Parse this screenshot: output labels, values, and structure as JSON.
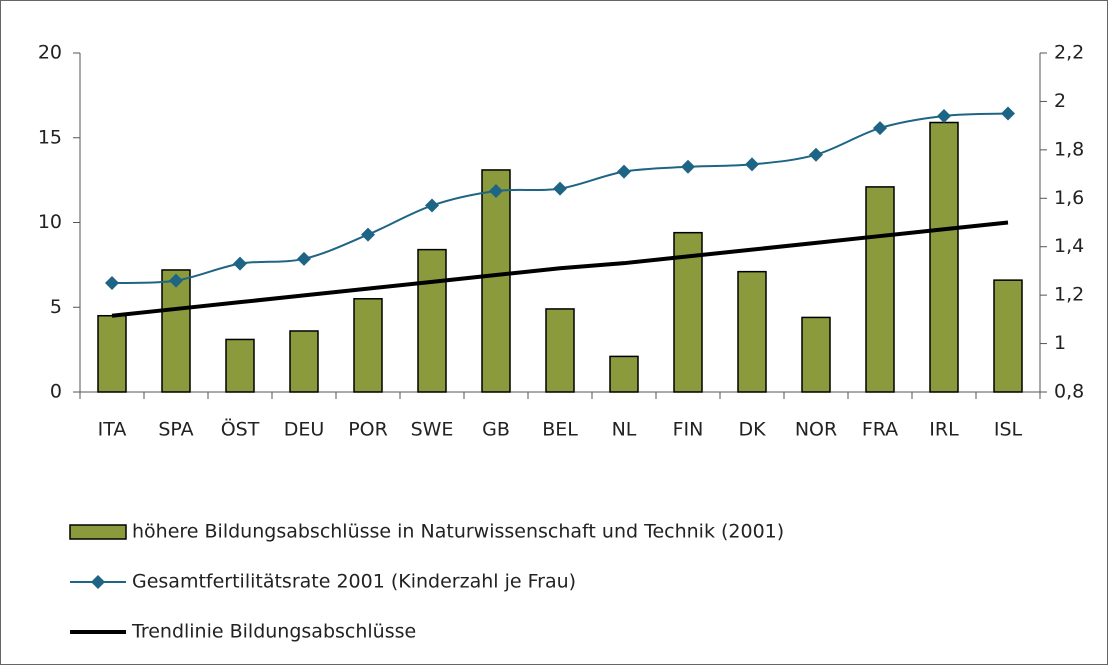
{
  "chart_data": {
    "type": "bar",
    "categories": [
      "ITA",
      "SPA",
      "ÖST",
      "DEU",
      "POR",
      "SWE",
      "GB",
      "BEL",
      "NL",
      "FIN",
      "DK",
      "NOR",
      "FRA",
      "IRL",
      "ISL"
    ],
    "series": [
      {
        "name": "höhere Bildungsabschlüsse in Naturwissenschaft und Technik (2001)",
        "type": "bar",
        "color": "#8a9a3c",
        "values": [
          4.5,
          7.2,
          3.1,
          3.6,
          5.5,
          8.4,
          13.1,
          4.9,
          2.1,
          9.4,
          7.1,
          4.4,
          12.1,
          15.9,
          6.6
        ]
      },
      {
        "name": "Gesamtfertilitätsrate 2001 (Kinderzahl je Frau)",
        "type": "line",
        "axis": "y2",
        "color": "#1e6585",
        "marker": "diamond",
        "smooth": true,
        "values": [
          1.25,
          1.26,
          1.33,
          1.35,
          1.45,
          1.57,
          1.63,
          1.64,
          1.71,
          1.73,
          1.74,
          1.78,
          1.89,
          1.94,
          1.95
        ]
      },
      {
        "name": "Trendlinie Bildungsabschlüsse",
        "type": "line",
        "color": "#000000",
        "values": [
          4.5,
          4.9,
          5.3,
          5.7,
          6.1,
          6.5,
          6.9,
          7.3,
          7.6,
          8.0,
          8.4,
          8.8,
          9.2,
          9.6,
          10.0
        ]
      }
    ],
    "ylim": [
      0,
      20
    ],
    "yticks": [
      0,
      5,
      10,
      15,
      20
    ],
    "y2lim": [
      0.8,
      2.2
    ],
    "y2ticks": [
      {
        "value": 0.8,
        "label": "0,8"
      },
      1,
      {
        "value": 1.2,
        "label": "1,2"
      },
      {
        "value": 1.4,
        "label": "1,4"
      },
      {
        "value": 1.6,
        "label": "1,6"
      },
      {
        "value": 1.8,
        "label": "1,8"
      },
      2,
      {
        "value": 2.2,
        "label": "2,2"
      }
    ],
    "grid": false
  }
}
